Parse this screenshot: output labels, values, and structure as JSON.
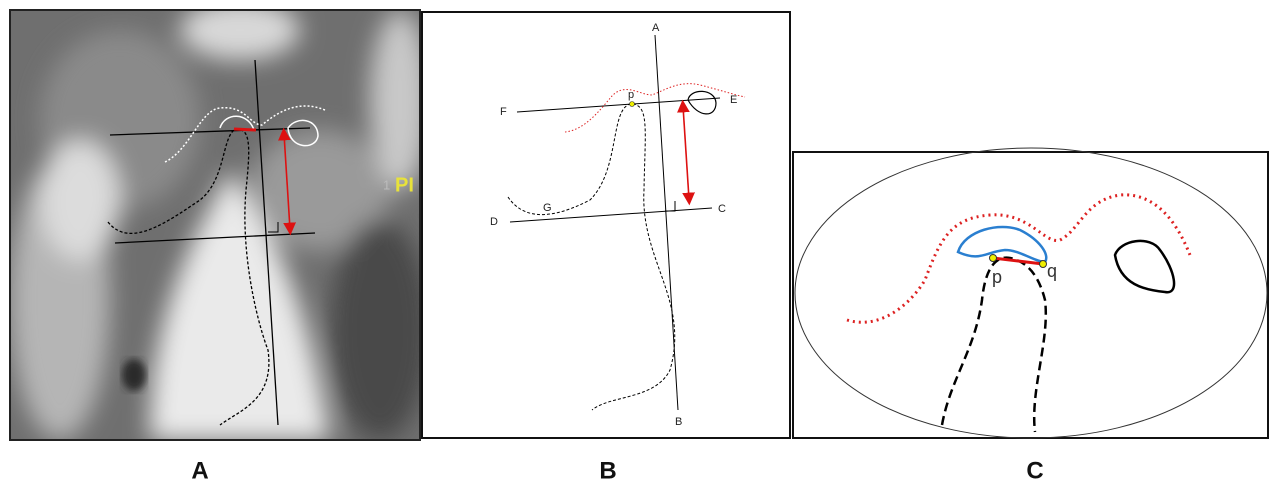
{
  "panels": [
    {
      "label": "A",
      "annotations": [
        "1",
        "PI"
      ]
    },
    {
      "label": "B",
      "points": [
        "A",
        "B",
        "C",
        "D",
        "E",
        "F",
        "G",
        "p"
      ]
    },
    {
      "label": "C",
      "points": [
        "p",
        "q"
      ]
    }
  ]
}
